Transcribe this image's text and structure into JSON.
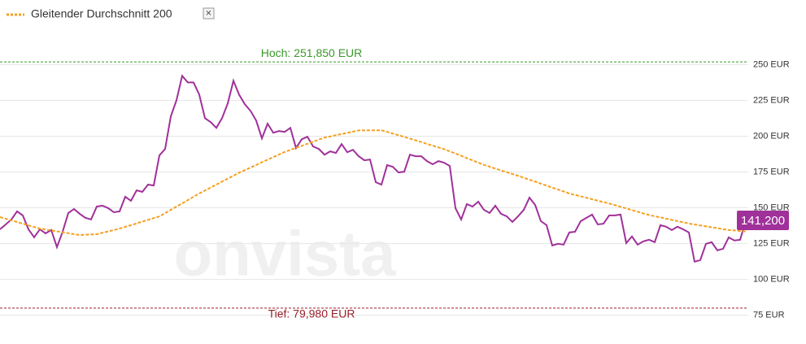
{
  "chart_data": {
    "type": "line",
    "legend": {
      "label": "Gleitender Durchschnitt 200",
      "close": "✕"
    },
    "watermark": "onvista",
    "ylim": [
      68,
      261
    ],
    "yticks": [
      {
        "value": 75,
        "label": "75 EUR"
      },
      {
        "value": 100,
        "label": "100 EUR"
      },
      {
        "value": 125,
        "label": "125 EUR"
      },
      {
        "value": 150,
        "label": "150 EUR"
      },
      {
        "value": 175,
        "label": "175 EUR"
      },
      {
        "value": 200,
        "label": "200 EUR"
      },
      {
        "value": 225,
        "label": "225 EUR"
      },
      {
        "value": 250,
        "label": "250 EUR"
      }
    ],
    "grid": true,
    "high": {
      "value": 251.85,
      "label": "Hoch: 251,850 EUR",
      "color": "#3a9a2a"
    },
    "low": {
      "value": 79.98,
      "label": "Tief: 79,980 EUR",
      "color": "#9a1f2a"
    },
    "last_price": {
      "value": 141.2,
      "label": "141,200",
      "color": "#a0309a"
    },
    "series": [
      {
        "color": "#a0309a",
        "values": [
          135,
          138.4,
          141.9,
          147.5,
          144.7,
          135,
          129.4,
          135,
          132.2,
          134.5,
          122.6,
          133.3,
          146.4,
          149.2,
          145.8,
          143,
          141.9,
          150.9,
          151.5,
          149.8,
          146.9,
          147.5,
          157.7,
          154.9,
          162.2,
          161.1,
          166.2,
          165.6,
          186.6,
          191.1,
          213.8,
          225.1,
          242.1,
          237.5,
          237.5,
          229,
          212.6,
          209.8,
          205.8,
          212.6,
          222.8,
          238.7,
          229,
          222.3,
          217.7,
          210.9,
          198.5,
          208.7,
          202.4,
          203.6,
          203,
          205.8,
          191.7,
          197.9,
          199.6,
          192.8,
          191.1,
          187.1,
          189.4,
          188.3,
          194.5,
          188.8,
          190.5,
          186,
          183.2,
          183.7,
          167.9,
          166.2,
          179.8,
          178.6,
          174.7,
          175.2,
          187.1,
          186,
          186,
          182.6,
          180.4,
          182.6,
          181.5,
          179.2,
          149.8,
          141.9,
          152.6,
          150.9,
          154.3,
          148.6,
          146.4,
          151.5,
          145.8,
          144.1,
          140.1,
          144.1,
          148.6,
          157.1,
          152,
          140.7,
          137.9,
          123.7,
          124.9,
          124.3,
          132.8,
          133.3,
          140.7,
          143,
          145.3,
          138.4,
          138.9,
          144.7,
          144.7,
          145.3,
          125.4,
          130,
          124.3,
          126.6,
          127.7,
          126,
          137.9,
          136.8,
          134.5,
          136.8,
          135,
          132.8,
          112.4,
          113.5,
          124.9,
          126,
          120.3,
          121.4,
          129.4,
          127.2,
          127.7,
          141.2
        ]
      },
      {
        "name": "Gleitender Durchschnitt 200",
        "color": "#f5a020",
        "dashed": true,
        "values": [
          143.5,
          142.4,
          141.2,
          140.1,
          138.9,
          137.8,
          136.6,
          135.5,
          134.9,
          134.2,
          133.6,
          132.9,
          132.3,
          131.6,
          131,
          131.2,
          131.4,
          131.6,
          132.6,
          133.5,
          134.5,
          135.5,
          136.7,
          137.9,
          139.1,
          140.4,
          141.6,
          142.8,
          144,
          146.3,
          148.6,
          150.9,
          153.1,
          155.4,
          157.7,
          160,
          162.1,
          164.1,
          166.2,
          168.3,
          170.4,
          172.4,
          174.5,
          176.3,
          178.1,
          179.9,
          181.8,
          183.6,
          185.4,
          187.2,
          189,
          190.4,
          191.9,
          193.3,
          194.7,
          196.1,
          197.6,
          199,
          199.8,
          200.7,
          201.5,
          202.3,
          203.2,
          204,
          204,
          204.1,
          204.1,
          204.1,
          203,
          201.8,
          200.7,
          199.5,
          198.3,
          197.1,
          195.9,
          194.6,
          193.4,
          192.2,
          191,
          189.4,
          187.9,
          186.3,
          184.7,
          183.1,
          181.6,
          180,
          178.7,
          177.4,
          176.1,
          174.9,
          173.6,
          172.3,
          171,
          169.6,
          168.3,
          166.9,
          165.5,
          164.1,
          162.8,
          161.4,
          160,
          159,
          158,
          157,
          156,
          155,
          154,
          153,
          151.9,
          150.7,
          149.6,
          148.4,
          147.3,
          146.1,
          145,
          144.1,
          143.3,
          142.4,
          141.6,
          140.7,
          139.9,
          139,
          138.4,
          137.7,
          137.1,
          136.4,
          135.8,
          135.1,
          134.5,
          134.2,
          133.8,
          133.5
        ]
      }
    ]
  }
}
